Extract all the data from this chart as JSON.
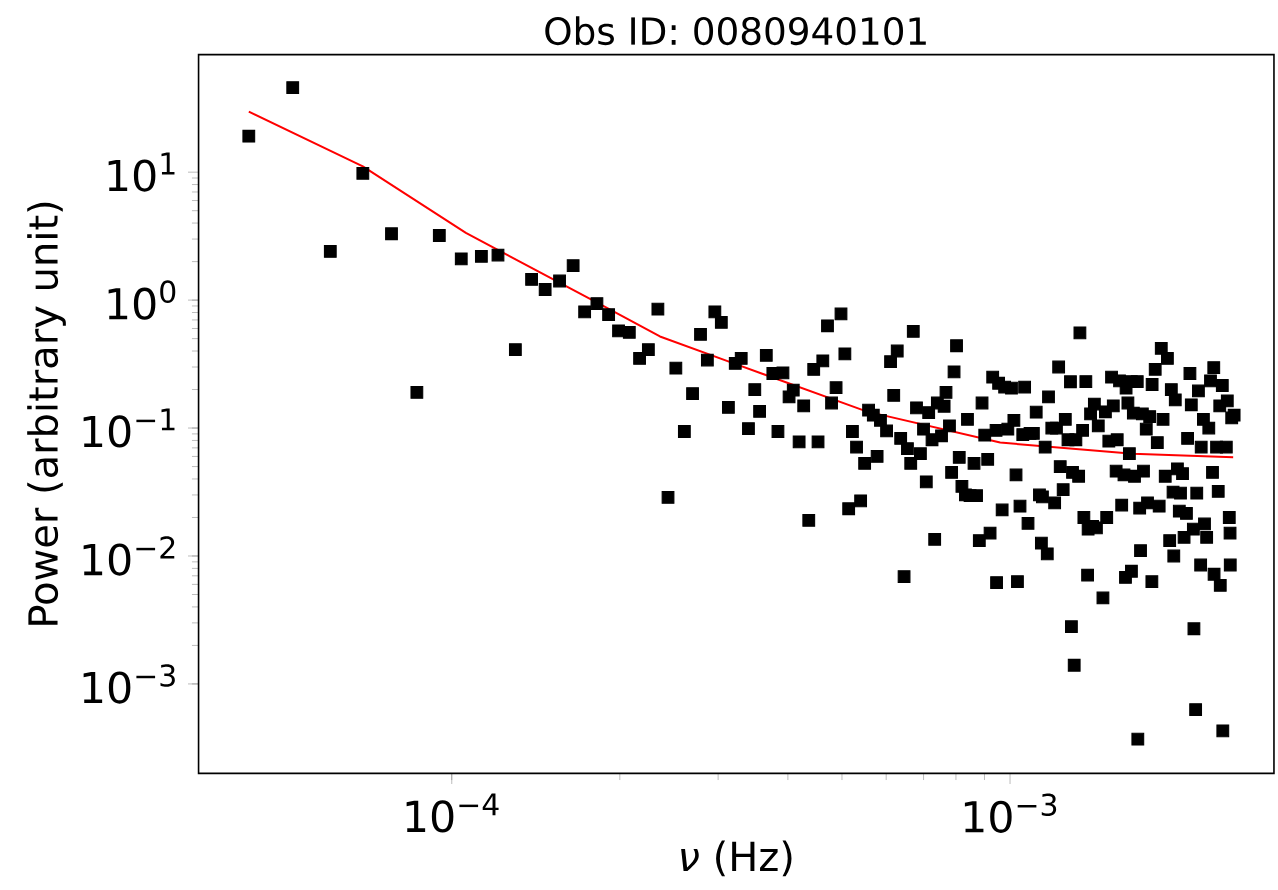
{
  "chart_data": {
    "type": "scatter",
    "title": "Obs ID: 0080940101",
    "xlabel": "*ν* (Hz)",
    "ylabel": "Power (arbitrary unit)",
    "log": "xy",
    "xlim": [
      3.52e-05,
      0.00297
    ],
    "ylim": [
      0.0002,
      83
    ],
    "xticks": [
      {
        "value": 0.0001,
        "label": "10$^{−4}$"
      },
      {
        "value": 0.001,
        "label": "10$^{−3}$"
      }
    ],
    "yticks": [
      {
        "value": 0.001,
        "label": "10$^{−3}$"
      },
      {
        "value": 0.01,
        "label": "10$^{−2}$"
      },
      {
        "value": 0.1,
        "label": "10$^{−1}$"
      },
      {
        "value": 1,
        "label": "10$^{0}$"
      },
      {
        "value": 10,
        "label": "10$^{1}$"
      }
    ],
    "series": [
      {
        "color": "#000000",
        "marker": "square",
        "x": [
          4.33e-05,
          5.19e-05,
          6.06e-05,
          6.93e-05,
          7.8e-05,
          8.66e-05,
          9.5e-05,
          0.000104,
          0.000113,
          0.000121,
          0.00013,
          0.000139,
          0.000147,
          0.000156,
          0.000165,
          0.000173,
          0.000182,
          0.000191,
          0.000199,
          0.000208,
          0.000217,
          0.000225,
          0.000234,
          0.000244,
          0.000252,
          0.000261,
          0.00027,
          0.000279,
          0.000287,
          0.000296,
          0.000304,
          0.000313,
          0.000322,
          0.00033,
          0.00034,
          0.000349,
          0.000356,
          0.000366,
          0.000376,
          0.000384,
          0.000392,
          0.000402,
          0.000409,
          0.000419,
          0.000427,
          0.000436,
          0.000445,
          0.000453,
          0.000462,
          0.000471,
          0.000479,
          0.000488,
          0.000498,
          0.000506,
          0.000514,
          0.000522,
          0.000531,
          0.00054,
          0.000549,
          0.000558,
          0.000569,
          0.000578,
          0.000586,
          0.000601,
          0.000611,
          0.000619,
          0.000628,
          0.000637,
          0.000646,
          0.000655,
          0.000664,
          0.000671,
          0.00068,
          0.000691,
          0.0007,
          0.000708,
          0.000715,
          0.000725,
          0.000733,
          0.000741,
          0.000754,
          0.000762,
          0.000768,
          0.000779,
          0.000786,
          0.000794,
          0.000802,
          0.000811,
          0.00082,
          0.000832,
          0.000839,
          0.000848,
          0.000862,
          0.000871,
          0.000881,
          0.000891,
          0.000901,
          0.000912,
          0.000921,
          0.000931,
          0.000944,
          0.000946,
          0.000954,
          0.000968,
          0.000978,
          0.000991,
          0.001006,
          0.001016,
          0.001025,
          0.001031,
          0.001042,
          0.001054,
          0.001062,
          0.001077,
          0.001086,
          0.001101,
          0.001114,
          0.001129,
          0.001138,
          0.001143,
          0.001156,
          0.001166,
          0.001172,
          0.001188,
          0.001202,
          0.001211,
          0.001222,
          0.00123,
          0.001245,
          0.001256,
          0.00127,
          0.001283,
          0.001288,
          0.001294,
          0.001303,
          0.001312,
          0.001327,
          0.001334,
          0.001349,
          0.001356,
          0.001367,
          0.001377,
          0.00138,
          0.001394,
          0.001406,
          0.001416,
          0.001428,
          0.001439,
          0.001467,
          0.001482,
          0.00149,
          0.001503,
          0.00152,
          0.001531,
          0.001549,
          0.001556,
          0.001571,
          0.001585,
          0.0016,
          0.00161,
          0.001614,
          0.001626,
          0.001636,
          0.001649,
          0.00165,
          0.001663,
          0.001671,
          0.00169,
          0.001694,
          0.001707,
          0.001713,
          0.001726,
          0.001734,
          0.001754,
          0.001763,
          0.001779,
          0.001795,
          0.001797,
          0.00182,
          0.001836,
          0.00185,
          0.001866,
          0.00188,
          0.001897,
          0.001914,
          0.001932,
          0.001945,
          0.001959,
          0.001965,
          0.001977,
          0.001995,
          0.00201,
          0.00202,
          0.002037,
          0.00205,
          0.00207,
          0.00208,
          0.0021,
          0.002112,
          0.00213,
          0.002135,
          0.00215,
          0.00216,
          0.002175,
          0.002195,
          0.0022,
          0.00222,
          0.00223,
          0.00225,
          0.00227,
          0.002286,
          0.002305,
          0.002317,
          0.00232,
          0.002344,
          0.00236,
          0.002375,
          0.00238,
          0.0024,
          0.002405,
          0.00244,
          0.00245,
          0.00247,
          0.002478,
          0.00248,
          0.002495,
          0.00252
        ],
        "values": [
          19.1,
          45.8,
          2.4,
          9.8,
          3.3,
          0.19,
          3.2,
          2.1,
          2.2,
          2.25,
          0.41,
          1.45,
          1.21,
          1.41,
          1.86,
          0.81,
          0.94,
          0.77,
          0.575,
          0.56,
          0.35,
          0.41,
          0.85,
          0.0287,
          0.294,
          0.094,
          0.186,
          0.54,
          0.34,
          0.81,
          0.67,
          0.145,
          0.32,
          0.35,
          0.099,
          0.2,
          0.135,
          0.37,
          0.267,
          0.094,
          0.27,
          0.175,
          0.198,
          0.078,
          0.149,
          0.019,
          0.287,
          0.078,
          0.335,
          0.63,
          0.157,
          0.207,
          0.78,
          0.38,
          0.0234,
          0.094,
          0.071,
          0.027,
          0.053,
          0.138,
          0.126,
          0.06,
          0.115,
          0.095,
          0.33,
          0.18,
          0.4,
          0.083,
          0.0069,
          0.069,
          0.053,
          0.57,
          0.144,
          0.063,
          0.098,
          0.038,
          0.132,
          0.081,
          0.0135,
          0.157,
          0.087,
          0.148,
          0.19,
          0.104,
          0.045,
          0.275,
          0.44,
          0.059,
          0.035,
          0.03,
          0.117,
          0.0296,
          0.053,
          0.0296,
          0.0132,
          0.157,
          0.088,
          0.057,
          0.0151,
          0.25,
          0.096,
          0.0062,
          0.224,
          0.0229,
          0.209,
          0.098,
          0.205,
          0.115,
          0.043,
          0.0063,
          0.0245,
          0.089,
          0.209,
          0.018,
          0.091,
          0.091,
          0.133,
          0.03,
          0.0126,
          0.029,
          0.071,
          0.0104,
          0.175,
          0.1,
          0.026,
          0.1,
          0.3,
          0.05,
          0.033,
          0.117,
          0.081,
          0.23,
          0.0028,
          0.045,
          0.0014,
          0.081,
          0.042,
          0.555,
          0.096,
          0.02,
          0.231,
          0.0071,
          0.0162,
          0.129,
          0.017,
          0.154,
          0.0166,
          0.104,
          0.0047,
          0.134,
          0.02,
          0.079,
          0.25,
          0.149,
          0.046,
          0.081,
          0.234,
          0.025,
          0.043,
          0.0068,
          0.205,
          0.157,
          0.063,
          0.231,
          0.0076,
          0.131,
          0.042,
          0.231,
          0.00037,
          0.0237,
          0.011,
          0.129,
          0.046,
          0.098,
          0.026,
          0.123,
          0.0063,
          0.219,
          0.288,
          0.077,
          0.0245,
          0.42,
          0.117,
          0.042,
          0.35,
          0.0132,
          0.2,
          0.0316,
          0.01,
          0.166,
          0.048,
          0.0224,
          0.031,
          0.044,
          0.014,
          0.0215,
          0.083,
          0.267,
          0.152,
          0.0162,
          0.0027,
          0.00063,
          0.031,
          0.195,
          0.0085,
          0.071,
          0.117,
          0.0178,
          0.014,
          0.1,
          0.234,
          0.045,
          0.297,
          0.0072,
          0.071,
          0.032,
          0.149,
          0.0059,
          0.215,
          0.00043,
          0.071,
          0.163,
          0.02,
          0.0151,
          0.0085,
          0.12,
          0.126
        ]
      },
      {
        "type": "line",
        "color": "#ff0000",
        "marker": "none",
        "x": [
          4.33e-05,
          6.93e-05,
          0.000106,
          0.000185,
          0.000236,
          0.00032,
          0.000553,
          0.00096,
          0.00166,
          0.00251
        ],
        "values": [
          29.7,
          11.1,
          3.35,
          0.92,
          0.52,
          0.32,
          0.135,
          0.077,
          0.063,
          0.059
        ]
      }
    ]
  }
}
